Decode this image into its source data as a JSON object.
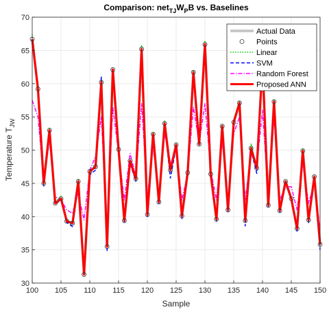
{
  "chart_data": {
    "type": "line",
    "title_parts": {
      "prefix": "Comparison: net",
      "sub1": "TJ",
      "mid": "W",
      "sub2": "P",
      "suffix": "B vs. Baselines"
    },
    "xlabel": "Sample",
    "ylabel": "Temperature T",
    "ylabel_sub": "JW",
    "xlim": [
      100,
      150
    ],
    "ylim": [
      30,
      70
    ],
    "xticks": [
      100,
      105,
      110,
      115,
      120,
      125,
      130,
      135,
      140,
      145,
      150
    ],
    "yticks": [
      30,
      35,
      40,
      45,
      50,
      55,
      60,
      65,
      70
    ],
    "grid": true,
    "legend_position": "top-right",
    "x": [
      100,
      101,
      102,
      103,
      104,
      105,
      106,
      107,
      108,
      109,
      110,
      111,
      112,
      113,
      114,
      115,
      116,
      117,
      118,
      119,
      120,
      121,
      122,
      123,
      124,
      125,
      126,
      127,
      128,
      129,
      130,
      131,
      132,
      133,
      134,
      135,
      136,
      137,
      138,
      139,
      140,
      141,
      142,
      143,
      144,
      145,
      146,
      147,
      148,
      149,
      150
    ],
    "series": [
      {
        "name": "Actual Data",
        "color": "#c8c8c8",
        "style": "solid",
        "width": 4,
        "values": [
          66.7,
          59.2,
          45.0,
          53.0,
          42.0,
          42.7,
          39.3,
          39.0,
          45.3,
          31.3,
          46.8,
          47.5,
          60.2,
          35.5,
          62.1,
          50.1,
          39.4,
          48.4,
          45.7,
          65.2,
          40.3,
          52.4,
          42.2,
          54.0,
          47.0,
          50.8,
          40.1,
          46.6,
          61.7,
          50.9,
          65.9,
          46.4,
          39.6,
          53.6,
          41.0,
          54.2,
          57.1,
          39.4,
          50.3,
          47.3,
          63.1,
          41.7,
          57.3,
          40.9,
          45.3,
          42.7,
          38.2,
          49.9,
          39.5,
          46.0,
          35.8
        ]
      },
      {
        "name": "Points",
        "color": "#000000",
        "style": "markers",
        "values": [
          66.7,
          59.2,
          45.0,
          53.0,
          42.0,
          42.7,
          39.3,
          39.0,
          45.3,
          31.3,
          46.8,
          47.5,
          60.2,
          35.5,
          62.1,
          50.1,
          39.4,
          48.4,
          45.7,
          65.2,
          40.3,
          52.4,
          42.2,
          54.0,
          47.0,
          50.8,
          40.1,
          46.6,
          61.7,
          50.9,
          65.9,
          46.4,
          39.6,
          53.6,
          41.0,
          54.2,
          57.1,
          39.4,
          50.3,
          47.3,
          63.1,
          41.7,
          57.3,
          40.9,
          45.3,
          42.7,
          38.2,
          49.9,
          39.5,
          46.0,
          35.8
        ]
      },
      {
        "name": "Linear",
        "color": "#00cc00",
        "style": "dotted",
        "width": 1.5,
        "values": [
          67.4,
          59.3,
          45.2,
          53.3,
          42.2,
          43.1,
          39.5,
          39.1,
          45.6,
          31.2,
          47.0,
          47.7,
          60.5,
          35.7,
          62.3,
          50.3,
          39.6,
          48.6,
          45.9,
          65.8,
          40.5,
          52.6,
          42.4,
          54.5,
          47.2,
          51.1,
          40.3,
          46.8,
          61.9,
          51.1,
          66.5,
          46.6,
          39.8,
          53.8,
          41.2,
          54.5,
          57.4,
          39.6,
          51.0,
          47.5,
          63.6,
          41.9,
          57.6,
          41.1,
          45.5,
          42.9,
          38.4,
          50.2,
          39.7,
          46.2,
          36.0
        ]
      },
      {
        "name": "SVM",
        "color": "#0000ff",
        "style": "dashed",
        "width": 1.5,
        "values": [
          66.5,
          59.0,
          44.6,
          52.8,
          41.9,
          42.5,
          39.1,
          38.5,
          45.0,
          31.3,
          46.3,
          47.0,
          61.0,
          34.9,
          62.0,
          49.8,
          39.0,
          48.0,
          45.3,
          65.0,
          40.0,
          52.1,
          42.0,
          53.8,
          45.8,
          50.5,
          39.7,
          46.3,
          61.5,
          50.6,
          65.7,
          46.0,
          39.3,
          53.3,
          40.8,
          54.0,
          57.0,
          38.6,
          50.0,
          46.5,
          62.9,
          41.5,
          57.0,
          40.6,
          45.0,
          42.5,
          37.8,
          49.6,
          39.1,
          45.7,
          35.0
        ]
      },
      {
        "name": "Random Forest",
        "color": "#ff00ff",
        "style": "dashdot",
        "width": 1.5,
        "values": [
          57.5,
          55.0,
          45.5,
          51.5,
          43.0,
          42.5,
          41.0,
          40.5,
          43.5,
          39.5,
          47.0,
          49.0,
          55.0,
          38.0,
          56.5,
          49.5,
          42.5,
          49.5,
          46.0,
          57.0,
          43.0,
          50.5,
          43.5,
          52.5,
          48.0,
          50.0,
          42.5,
          46.5,
          56.5,
          51.0,
          57.0,
          47.0,
          42.5,
          51.5,
          42.5,
          52.5,
          55.0,
          42.5,
          49.5,
          47.5,
          56.0,
          43.0,
          55.0,
          42.5,
          44.5,
          44.5,
          41.0,
          48.0,
          42.0,
          45.0,
          38.0
        ]
      },
      {
        "name": "Proposed ANN",
        "color": "#ff0000",
        "style": "solid",
        "width": 3,
        "values": [
          66.7,
          59.2,
          45.0,
          53.0,
          42.0,
          42.7,
          39.3,
          39.0,
          45.3,
          31.3,
          46.8,
          47.5,
          60.2,
          35.5,
          62.1,
          50.1,
          39.4,
          48.4,
          45.7,
          65.2,
          40.3,
          52.4,
          42.2,
          54.0,
          47.0,
          50.8,
          40.1,
          46.6,
          61.7,
          50.9,
          65.9,
          46.4,
          39.6,
          53.6,
          41.0,
          54.2,
          57.1,
          39.4,
          50.3,
          47.3,
          63.1,
          41.7,
          57.3,
          40.9,
          45.3,
          42.7,
          38.2,
          49.9,
          39.5,
          46.0,
          35.8
        ]
      }
    ]
  }
}
